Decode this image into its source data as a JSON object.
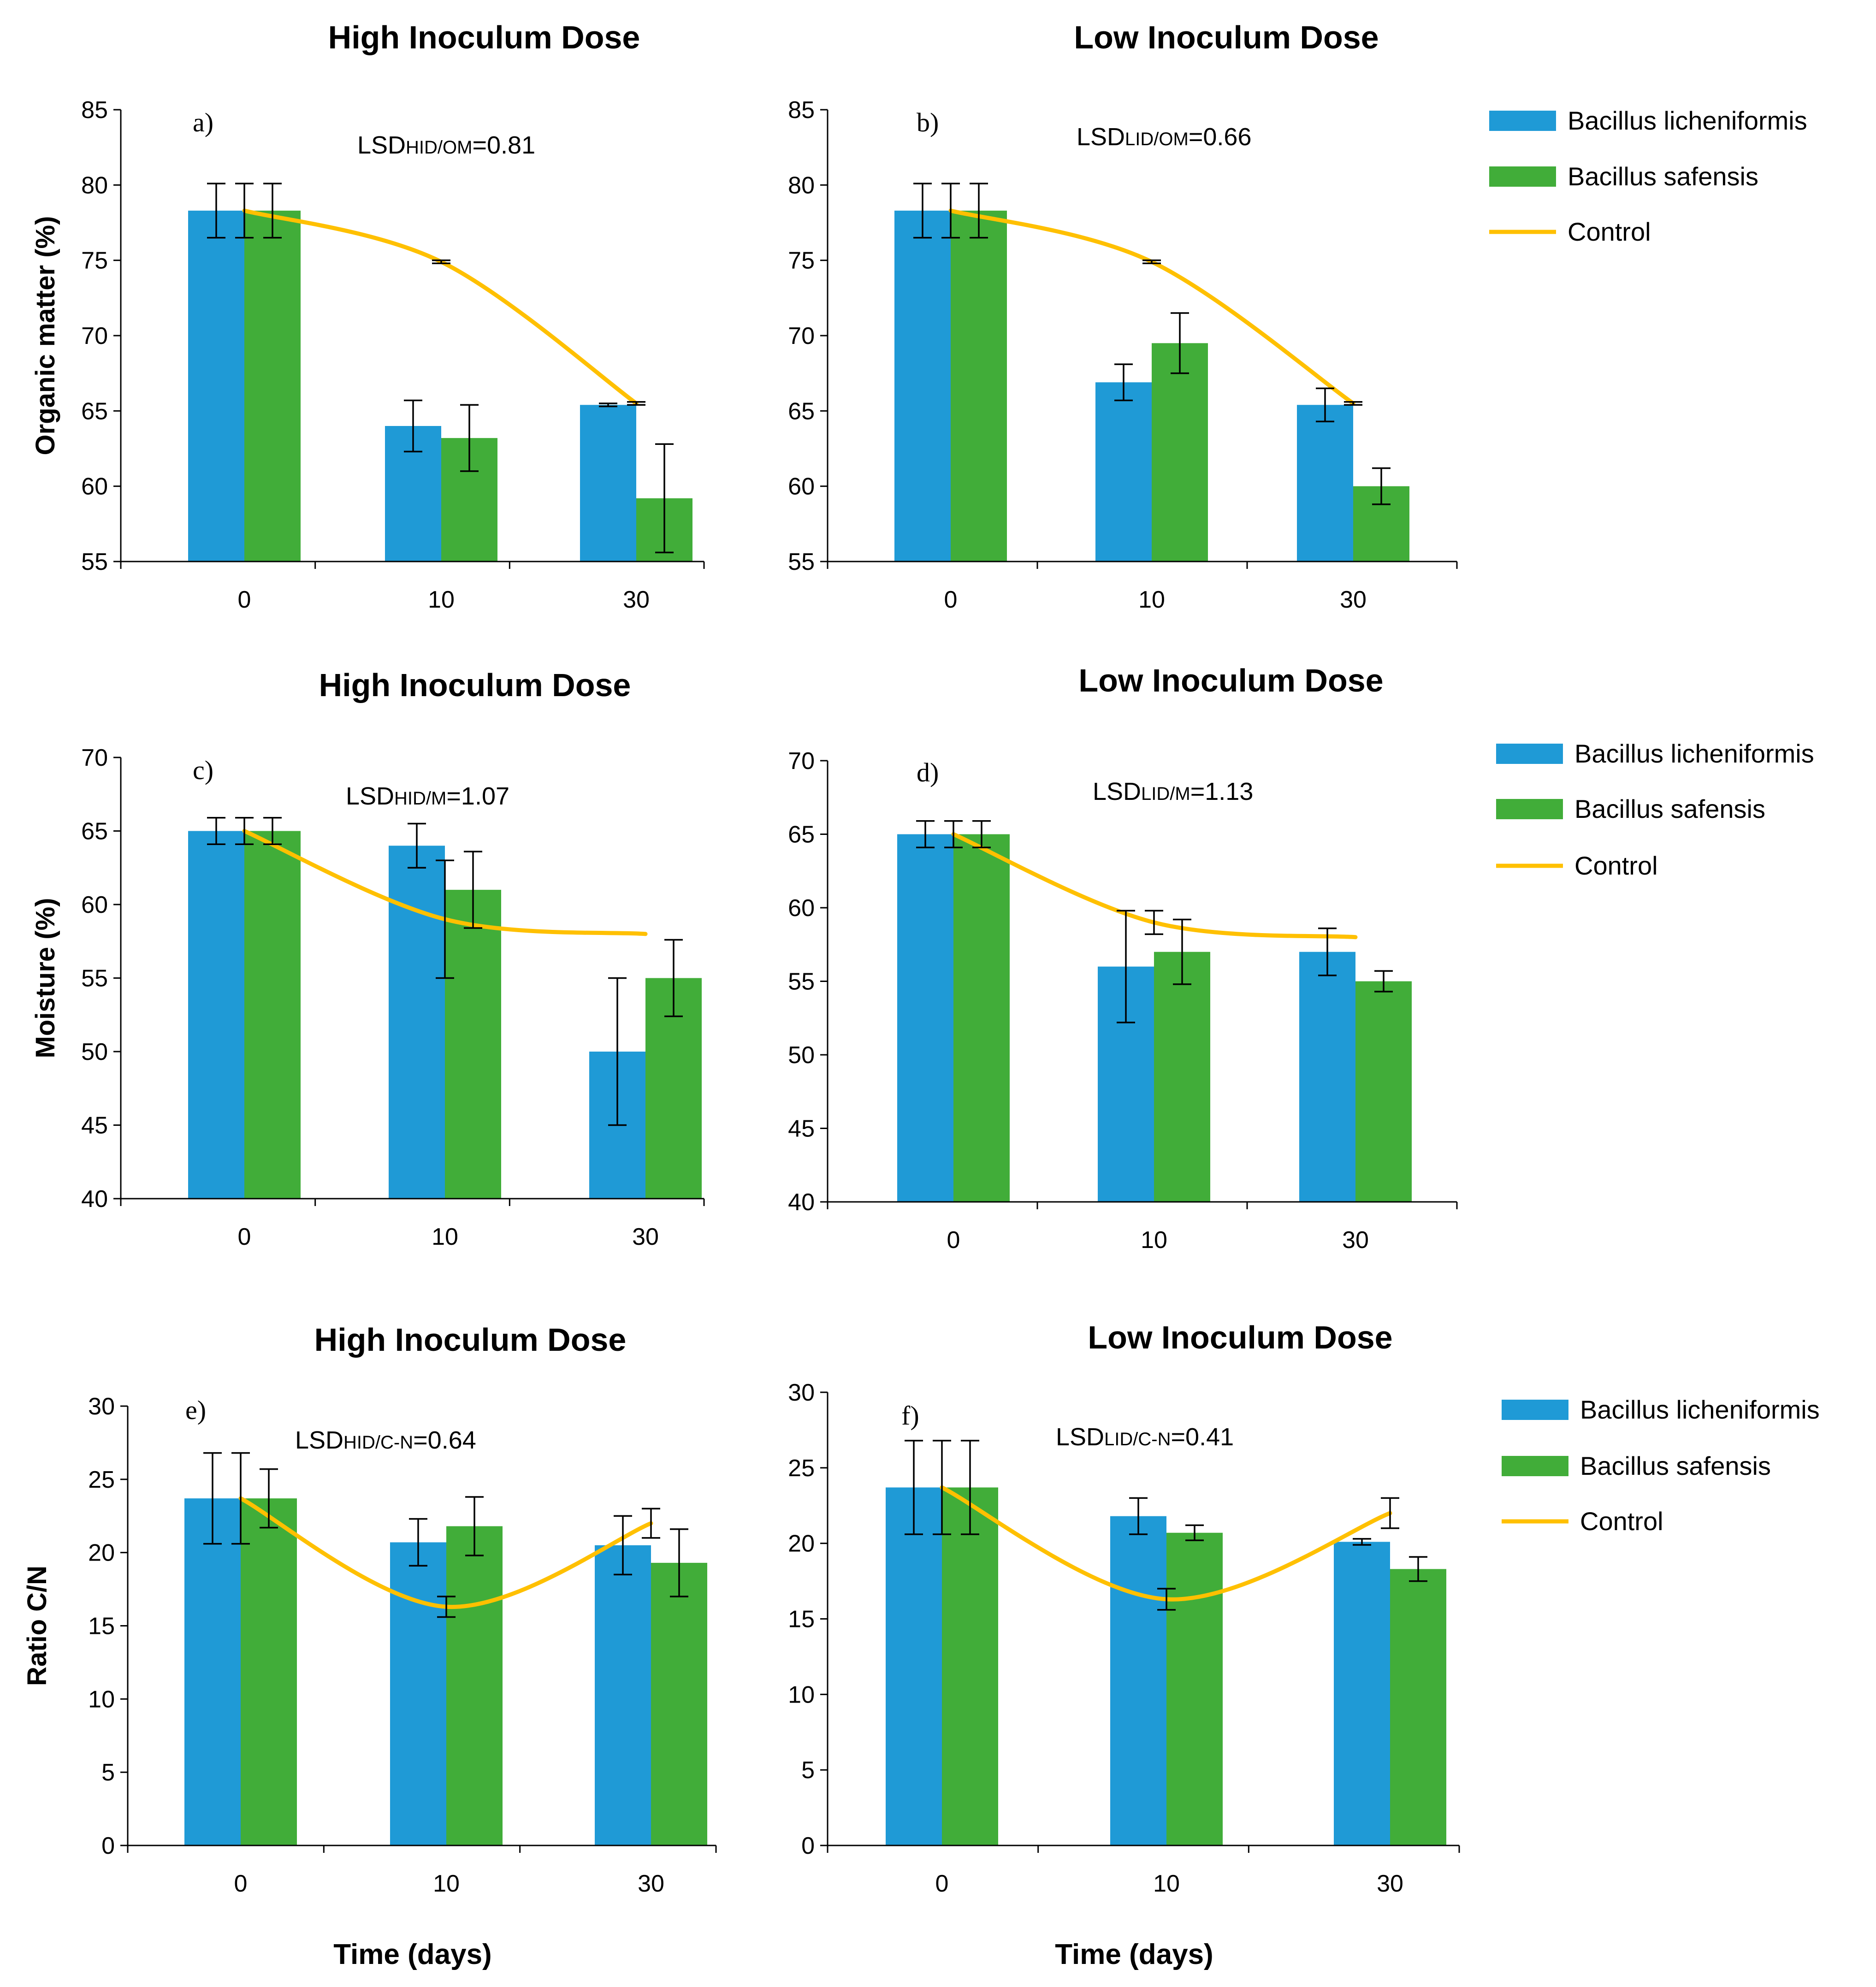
{
  "colors": {
    "licheniformis": "#1f9ad6",
    "safensis": "#41ad39",
    "control": "#ffc000",
    "axis": "#000000"
  },
  "legend": [
    {
      "name": "Bacillus licheniformis",
      "type": "bar",
      "color_key": "licheniformis"
    },
    {
      "name": "Bacillus safensis",
      "type": "bar",
      "color_key": "safensis"
    },
    {
      "name": "Control",
      "type": "line",
      "color_key": "control"
    }
  ],
  "xlabel": "Time (days)",
  "chart_data": [
    {
      "type": "bar",
      "panel": "a)",
      "title": "High Inoculum Dose",
      "lsd": {
        "prefix": "LSD",
        "sub": "HID/OM",
        "value": "=0.81"
      },
      "ylabel": "Organic matter (%)",
      "ylim": [
        55,
        85
      ],
      "yticks": [
        55,
        60,
        65,
        70,
        75,
        80,
        85
      ],
      "categories": [
        "0",
        "10",
        "30"
      ],
      "series": [
        {
          "name": "Bacillus licheniformis",
          "values": [
            78.3,
            64.0,
            65.4
          ],
          "errors": [
            1.8,
            1.7,
            0.1
          ]
        },
        {
          "name": "Bacillus safensis",
          "values": [
            78.3,
            63.2,
            59.2
          ],
          "errors": [
            1.8,
            2.2,
            3.6
          ]
        }
      ],
      "control": {
        "name": "Control",
        "values": [
          78.3,
          74.9,
          65.5
        ],
        "errors": [
          1.8,
          0.1,
          0.1
        ]
      },
      "show_xlabel": false
    },
    {
      "type": "bar",
      "panel": "b)",
      "title": "Low Inoculum Dose",
      "lsd": {
        "prefix": "LSD",
        "sub": "LID/OM",
        "value": "=0.66"
      },
      "ylabel": "",
      "ylim": [
        55,
        85
      ],
      "yticks": [
        55,
        60,
        65,
        70,
        75,
        80,
        85
      ],
      "categories": [
        "0",
        "10",
        "30"
      ],
      "series": [
        {
          "name": "Bacillus licheniformis",
          "values": [
            78.3,
            66.9,
            65.4
          ],
          "errors": [
            1.8,
            1.2,
            1.1
          ]
        },
        {
          "name": "Bacillus safensis",
          "values": [
            78.3,
            69.5,
            60.0
          ],
          "errors": [
            1.8,
            2.0,
            1.2
          ]
        }
      ],
      "control": {
        "name": "Control",
        "values": [
          78.3,
          74.9,
          65.5
        ],
        "errors": [
          1.8,
          0.1,
          0.1
        ]
      },
      "show_xlabel": false
    },
    {
      "type": "bar",
      "panel": "c)",
      "title": "High Inoculum Dose",
      "lsd": {
        "prefix": "LSD",
        "sub": "HID/M",
        "value": "=1.07"
      },
      "ylabel": "Moisture (%)",
      "ylim": [
        40,
        70
      ],
      "yticks": [
        40,
        45,
        50,
        55,
        60,
        65,
        70
      ],
      "categories": [
        "0",
        "10",
        "30"
      ],
      "series": [
        {
          "name": "Bacillus licheniformis",
          "values": [
            65.0,
            64.0,
            50.0
          ],
          "errors": [
            0.9,
            1.5,
            5.0
          ]
        },
        {
          "name": "Bacillus safensis",
          "values": [
            65.0,
            61.0,
            55.0
          ],
          "errors": [
            0.9,
            2.6,
            2.6
          ]
        }
      ],
      "control": {
        "name": "Control",
        "values": [
          65.0,
          59.0,
          58.0
        ],
        "errors": [
          0.9,
          4.0,
          0.0
        ]
      },
      "show_xlabel": false
    },
    {
      "type": "bar",
      "panel": "d)",
      "title": "Low Inoculum Dose",
      "lsd": {
        "prefix": "LSD",
        "sub": "LID/M",
        "value": "=1.13"
      },
      "ylabel": "",
      "ylim": [
        40,
        70
      ],
      "yticks": [
        40,
        45,
        50,
        55,
        60,
        65,
        70
      ],
      "categories": [
        "0",
        "10",
        "30"
      ],
      "series": [
        {
          "name": "Bacillus licheniformis",
          "values": [
            65.0,
            56.0,
            57.0
          ],
          "errors": [
            0.9,
            3.8,
            1.6
          ]
        },
        {
          "name": "Bacillus safensis",
          "values": [
            65.0,
            57.0,
            55.0
          ],
          "errors": [
            0.9,
            2.2,
            0.7
          ]
        }
      ],
      "control": {
        "name": "Control",
        "values": [
          65.0,
          59.0,
          58.0
        ],
        "errors": [
          0.9,
          0.8,
          0.0
        ]
      },
      "show_xlabel": false
    },
    {
      "type": "bar",
      "panel": "e)",
      "title": "High Inoculum Dose",
      "lsd": {
        "prefix": "LSD",
        "sub": "HID/C-N",
        "value": "=0.64"
      },
      "ylabel": "Ratio C/N",
      "ylim": [
        0,
        30
      ],
      "yticks": [
        0,
        5,
        10,
        15,
        20,
        25,
        30
      ],
      "categories": [
        "0",
        "10",
        "30"
      ],
      "series": [
        {
          "name": "Bacillus licheniformis",
          "values": [
            23.7,
            20.7,
            20.5
          ],
          "errors": [
            3.1,
            1.6,
            2.0
          ]
        },
        {
          "name": "Bacillus safensis",
          "values": [
            23.7,
            21.8,
            19.3
          ],
          "errors": [
            2.0,
            2.0,
            2.3
          ]
        }
      ],
      "control": {
        "name": "Control",
        "values": [
          23.7,
          16.3,
          22.0
        ],
        "errors": [
          3.1,
          0.7,
          1.0
        ]
      },
      "show_xlabel": true
    },
    {
      "type": "bar",
      "panel": "f)",
      "title": "Low Inoculum Dose",
      "lsd": {
        "prefix": "LSD",
        "sub": "LID/C-N",
        "value": "=0.41"
      },
      "ylabel": "",
      "ylim": [
        0,
        30
      ],
      "yticks": [
        0,
        5,
        10,
        15,
        20,
        25,
        30
      ],
      "categories": [
        "0",
        "10",
        "30"
      ],
      "series": [
        {
          "name": "Bacillus licheniformis",
          "values": [
            23.7,
            21.8,
            20.1
          ],
          "errors": [
            3.1,
            1.2,
            0.2
          ]
        },
        {
          "name": "Bacillus safensis",
          "values": [
            23.7,
            20.7,
            18.3
          ],
          "errors": [
            3.1,
            0.5,
            0.8
          ]
        }
      ],
      "control": {
        "name": "Control",
        "values": [
          23.7,
          16.3,
          22.0
        ],
        "errors": [
          3.1,
          0.7,
          1.0
        ]
      },
      "show_xlabel": true
    }
  ]
}
